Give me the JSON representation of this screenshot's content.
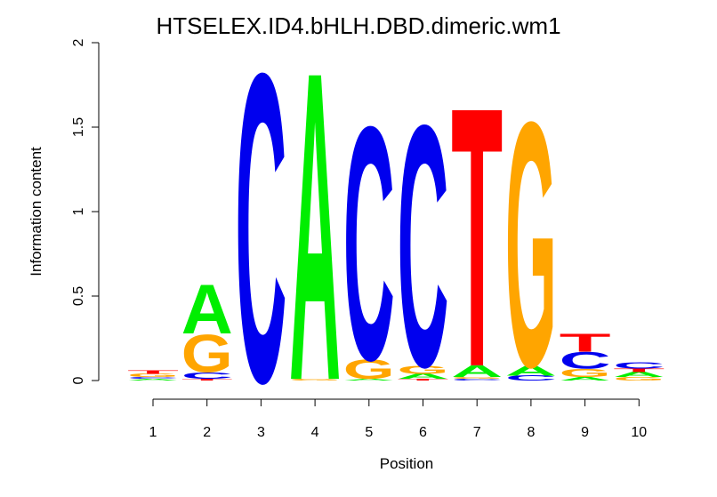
{
  "chart_data": {
    "type": "sequence-logo",
    "title": "HTSELEX.ID4.bHLH.DBD.dimeric.wm1",
    "xlabel": "Position",
    "ylabel": "Information content",
    "ylim": [
      0,
      2
    ],
    "yticks": [
      "0",
      "0.5",
      "1",
      "1.5",
      "2"
    ],
    "positions": [
      "1",
      "2",
      "3",
      "4",
      "5",
      "6",
      "7",
      "8",
      "9",
      "10"
    ],
    "colors": {
      "A": "#00ee00",
      "C": "#0000ee",
      "G": "#ffa500",
      "T": "#ff0000"
    },
    "stacks": [
      [
        [
          "A",
          0.01
        ],
        [
          "C",
          0.01
        ],
        [
          "G",
          0.02
        ],
        [
          "T",
          0.02
        ]
      ],
      [
        [
          "T",
          0.01
        ],
        [
          "C",
          0.04
        ],
        [
          "G",
          0.23
        ],
        [
          "A",
          0.3
        ]
      ],
      [
        [
          "C",
          1.88
        ]
      ],
      [
        [
          "G",
          0.01
        ],
        [
          "A",
          1.88
        ]
      ],
      [
        [
          "A",
          0.01
        ],
        [
          "G",
          0.12
        ],
        [
          "C",
          1.42
        ]
      ],
      [
        [
          "T",
          0.01
        ],
        [
          "A",
          0.03
        ],
        [
          "G",
          0.05
        ],
        [
          "C",
          1.47
        ]
      ],
      [
        [
          "C",
          0.01
        ],
        [
          "G",
          0.01
        ],
        [
          "A",
          0.07
        ],
        [
          "T",
          1.58
        ]
      ],
      [
        [
          "C",
          0.03
        ],
        [
          "A",
          0.06
        ],
        [
          "G",
          1.49
        ]
      ],
      [
        [
          "A",
          0.02
        ],
        [
          "G",
          0.05
        ],
        [
          "C",
          0.1
        ],
        [
          "T",
          0.11
        ]
      ],
      [
        [
          "G",
          0.02
        ],
        [
          "A",
          0.03
        ],
        [
          "T",
          0.02
        ],
        [
          "C",
          0.04
        ]
      ]
    ]
  }
}
